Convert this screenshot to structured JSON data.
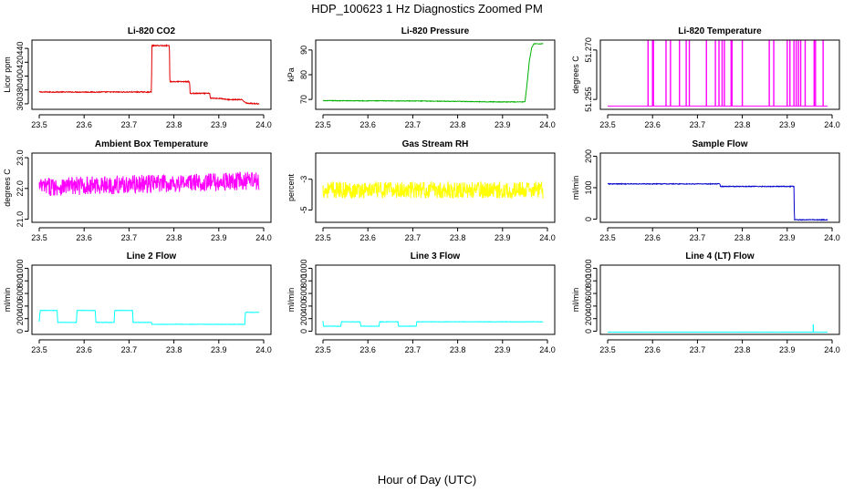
{
  "figure": {
    "title": "HDP_100623  1 Hz Diagnostics Zoomed PM",
    "xlabel": "Hour of Day (UTC)"
  },
  "chart_data": [
    {
      "type": "line",
      "title": "Li-820 CO2",
      "ylabel": "Licor ppm",
      "color": "#e00000",
      "x_range": [
        23.5,
        24.0
      ],
      "x_ticks": [
        "23.5",
        "23.6",
        "23.7",
        "23.8",
        "23.9",
        "24.0"
      ],
      "ylim": [
        352,
        452
      ],
      "y_ticks": [
        360,
        380,
        400,
        420,
        440
      ],
      "noise": 0.7,
      "spikes": [],
      "series": [
        {
          "x": [
            23.5,
            23.75,
            23.751,
            23.79,
            23.791,
            23.835,
            23.836,
            23.88,
            23.881,
            23.9,
            23.92,
            23.95,
            23.96,
            23.961,
            23.99
          ],
          "y": [
            377,
            377,
            444,
            444,
            392,
            392,
            375,
            375,
            368,
            368,
            366,
            366,
            362,
            361,
            360
          ]
        }
      ]
    },
    {
      "type": "line",
      "title": "Li-820 Pressure",
      "ylabel": "kPa",
      "color": "#00b000",
      "x_range": [
        23.5,
        24.0
      ],
      "x_ticks": [
        "23.5",
        "23.6",
        "23.7",
        "23.8",
        "23.9",
        "24.0"
      ],
      "ylim": [
        66,
        94
      ],
      "y_ticks": [
        70,
        80,
        90
      ],
      "noise": 0.12,
      "spikes": [],
      "series": [
        {
          "x": [
            23.5,
            23.7,
            23.9,
            23.95,
            23.955,
            23.96,
            23.965,
            23.97,
            23.99
          ],
          "y": [
            69.5,
            69.4,
            69.0,
            69.0,
            77,
            86,
            91,
            92.5,
            92.5
          ]
        }
      ]
    },
    {
      "type": "line",
      "title": "Li-820 Temperature",
      "ylabel": "degrees C",
      "color": "#ff00ff",
      "x_range": [
        23.5,
        24.0
      ],
      "x_ticks": [
        "23.5",
        "23.6",
        "23.7",
        "23.8",
        "23.9",
        "24.0"
      ],
      "ylim": [
        51.252,
        51.273
      ],
      "y_ticks": [
        "51.255",
        "51.270"
      ],
      "noise": 0,
      "spikes": [],
      "series": [
        {
          "x": [
            23.5,
            23.99
          ],
          "y": [
            51.253,
            51.253
          ]
        }
      ],
      "pulses": {
        "base": 51.253,
        "top": 51.273,
        "x": [
          23.59,
          23.6,
          23.602,
          23.63,
          23.64,
          23.66,
          23.675,
          23.682,
          23.72,
          23.74,
          23.748,
          23.755,
          23.76,
          23.775,
          23.777,
          23.8,
          23.86,
          23.87,
          23.9,
          23.906,
          23.915,
          23.92,
          23.925,
          23.93,
          23.94,
          23.96,
          23.963,
          23.98
        ]
      }
    },
    {
      "type": "line",
      "title": "Ambient Box Temperature",
      "ylabel": "degrees C",
      "color": "#ff00ff",
      "x_range": [
        23.5,
        24.0
      ],
      "x_ticks": [
        "23.5",
        "23.6",
        "23.7",
        "23.8",
        "23.9",
        "24.0"
      ],
      "ylim": [
        20.9,
        23.15
      ],
      "y_ticks": [
        "21.0",
        "22.0",
        "23.0"
      ],
      "noise": 0.3,
      "spikes": [],
      "series": [
        {
          "x": [
            23.5,
            23.99
          ],
          "y": [
            22.05,
            22.25
          ]
        }
      ]
    },
    {
      "type": "line",
      "title": "Gas Stream RH",
      "ylabel": "percent",
      "color": "#ffff00",
      "x_range": [
        23.5,
        24.0
      ],
      "x_ticks": [
        "23.5",
        "23.6",
        "23.7",
        "23.8",
        "23.9",
        "24.0"
      ],
      "ylim": [
        -5.8,
        -1.3
      ],
      "y_ticks": [
        -5,
        -3
      ],
      "noise": 0.55,
      "spikes": [],
      "series": [
        {
          "x": [
            23.5,
            23.99
          ],
          "y": [
            -3.7,
            -3.7
          ]
        }
      ]
    },
    {
      "type": "line",
      "title": "Sample Flow",
      "ylabel": "ml/min",
      "color": "#0000cc",
      "x_range": [
        23.5,
        24.0
      ],
      "x_ticks": [
        "23.5",
        "23.6",
        "23.7",
        "23.8",
        "23.9",
        "24.0"
      ],
      "ylim": [
        -10,
        210
      ],
      "y_ticks": [
        0,
        100,
        200
      ],
      "noise": 1.2,
      "spikes": [],
      "series": [
        {
          "x": [
            23.5,
            23.75,
            23.751,
            23.915,
            23.916,
            23.99
          ],
          "y": [
            112,
            112,
            104,
            104,
            -2,
            -2
          ]
        }
      ]
    },
    {
      "type": "line",
      "title": "Line 2 Flow",
      "ylabel": "ml/min",
      "color": "#00ffff",
      "x_range": [
        23.5,
        24.0
      ],
      "x_ticks": [
        "23.5",
        "23.6",
        "23.7",
        "23.8",
        "23.9",
        "24.0"
      ],
      "ylim": [
        -50,
        1050
      ],
      "y_ticks": [
        0,
        200,
        400,
        600,
        800,
        1000
      ],
      "noise": 3,
      "spikes": [],
      "series": [
        {
          "x": [
            23.5,
            23.502,
            23.54,
            23.541,
            23.583,
            23.584,
            23.625,
            23.626,
            23.667,
            23.668,
            23.708,
            23.709,
            23.75,
            23.751,
            23.958,
            23.959,
            23.99
          ],
          "y": [
            150,
            330,
            330,
            140,
            140,
            330,
            330,
            140,
            140,
            330,
            330,
            140,
            140,
            110,
            110,
            300,
            300
          ]
        }
      ]
    },
    {
      "type": "line",
      "title": "Line 3 Flow",
      "ylabel": "ml/min",
      "color": "#00ffff",
      "x_range": [
        23.5,
        24.0
      ],
      "x_ticks": [
        "23.5",
        "23.6",
        "23.7",
        "23.8",
        "23.9",
        "24.0"
      ],
      "ylim": [
        -50,
        1050
      ],
      "y_ticks": [
        0,
        200,
        400,
        600,
        800,
        1000
      ],
      "noise": 3,
      "spikes": [],
      "series": [
        {
          "x": [
            23.5,
            23.501,
            23.54,
            23.541,
            23.583,
            23.584,
            23.625,
            23.626,
            23.667,
            23.668,
            23.708,
            23.709,
            23.99
          ],
          "y": [
            160,
            80,
            80,
            150,
            150,
            80,
            80,
            150,
            150,
            80,
            80,
            150,
            150
          ]
        }
      ]
    },
    {
      "type": "line",
      "title": "Line 4 (LT) Flow",
      "ylabel": "ml/min",
      "color": "#00ffff",
      "x_range": [
        23.5,
        24.0
      ],
      "x_ticks": [
        "23.5",
        "23.6",
        "23.7",
        "23.8",
        "23.9",
        "24.0"
      ],
      "ylim": [
        -50,
        1050
      ],
      "y_ticks": [
        0,
        200,
        400,
        600,
        800,
        1000
      ],
      "noise": 1,
      "spikes": [
        {
          "x": 23.958,
          "y": 110
        }
      ],
      "series": [
        {
          "x": [
            23.5,
            23.99
          ],
          "y": [
            -15,
            -15
          ]
        }
      ]
    }
  ]
}
